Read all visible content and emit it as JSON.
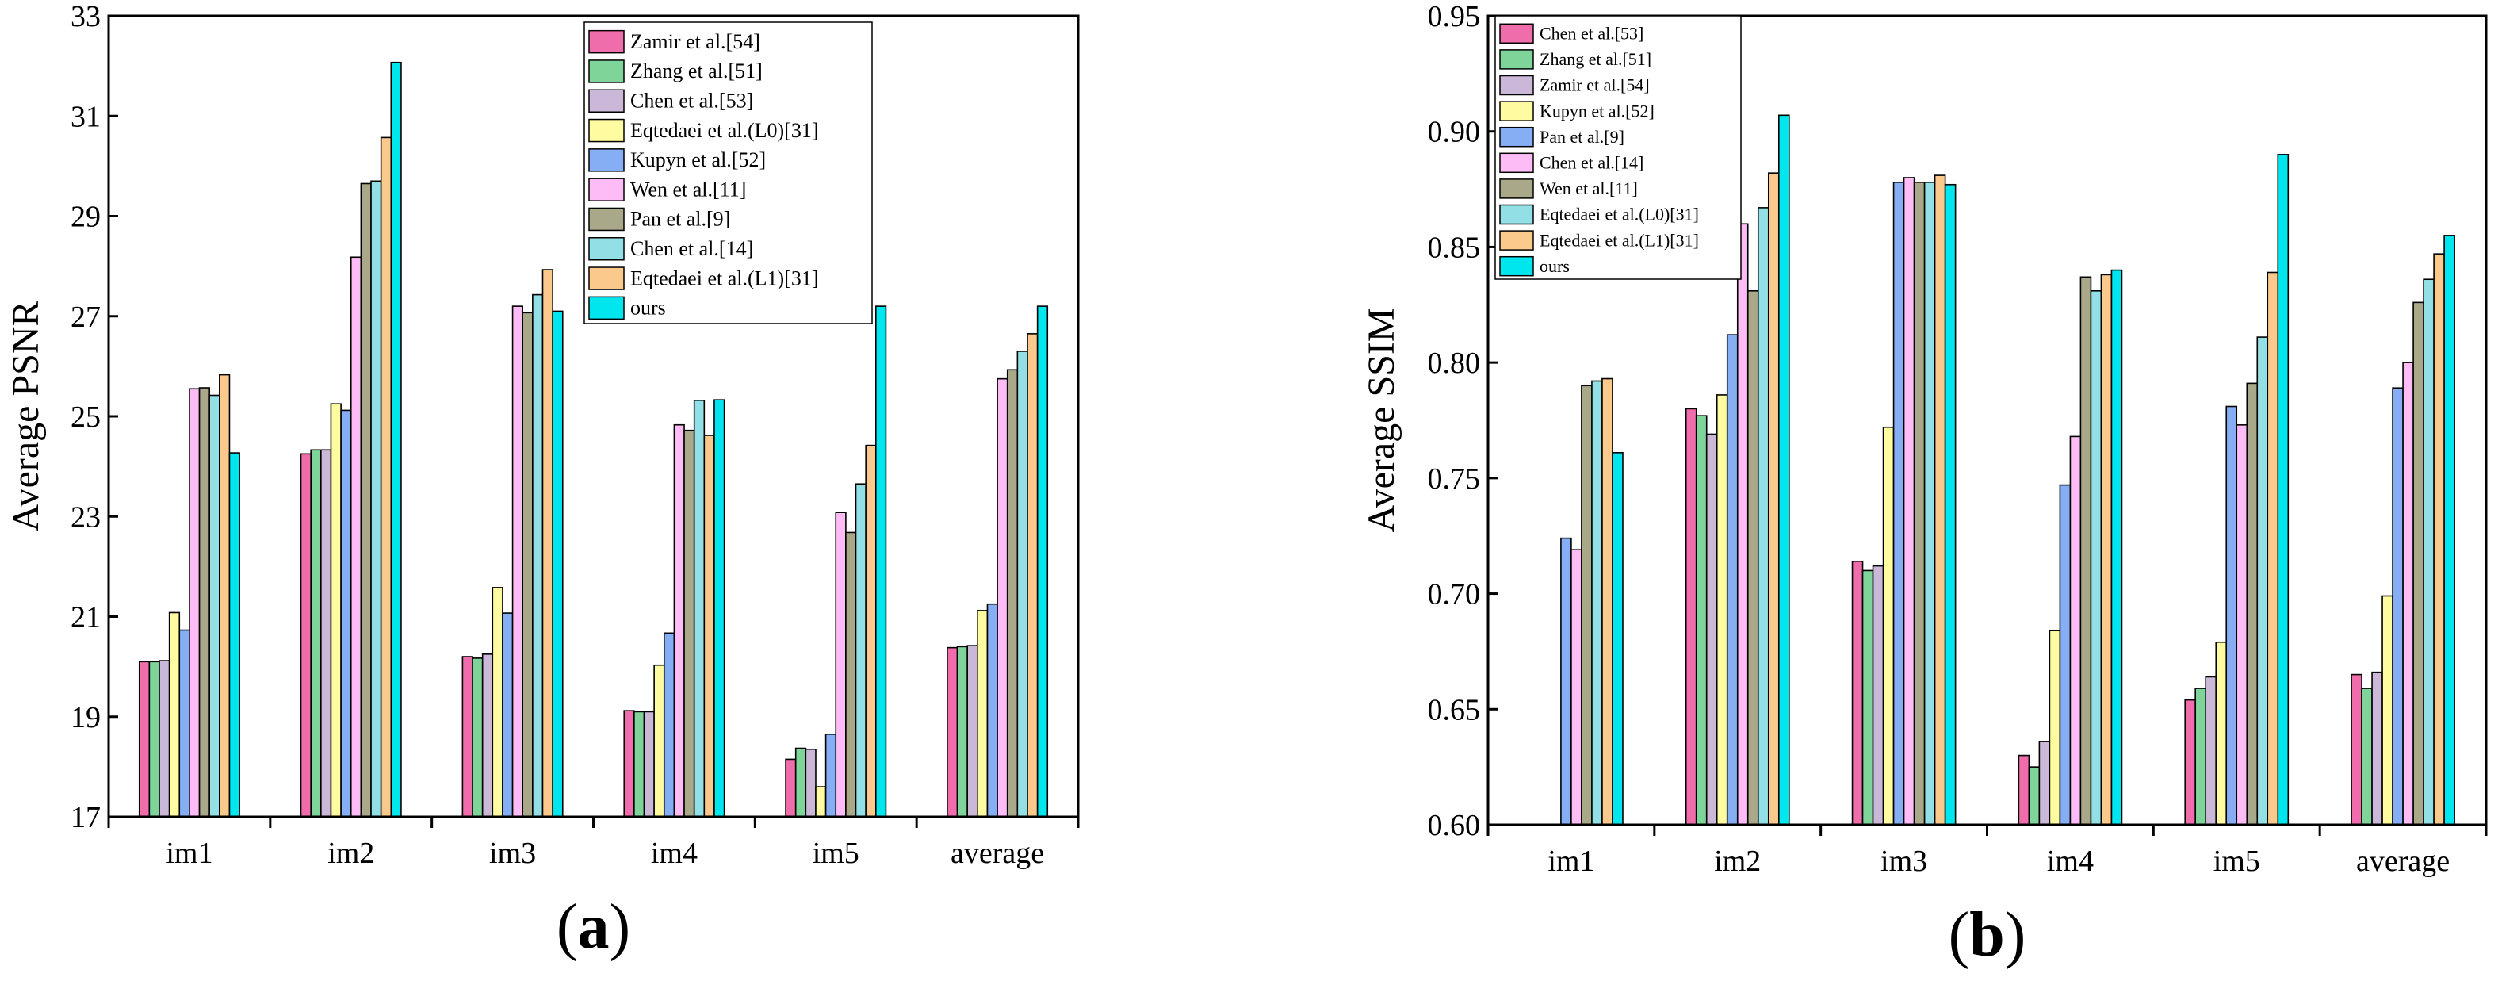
{
  "chart_data": [
    {
      "type": "bar",
      "panel_label": {
        "open": "(",
        "letter": "a",
        "close": ")"
      },
      "ylabel": "Average PSNR",
      "xlabel": "",
      "ylim": [
        17,
        33
      ],
      "yticks": [
        "17",
        "19",
        "21",
        "23",
        "25",
        "27",
        "29",
        "31",
        "33"
      ],
      "categories": [
        "im1",
        "im2",
        "im3",
        "im4",
        "im5",
        "average"
      ],
      "legend_position": "top-right",
      "series": [
        {
          "name": "Zamir et al.[54]",
          "color": "#f06dac",
          "values": [
            20.1,
            24.25,
            20.2,
            19.12,
            18.15,
            20.38
          ]
        },
        {
          "name": "Zhang et al.[51]",
          "color": "#7fd49a",
          "values": [
            20.1,
            24.33,
            20.17,
            19.1,
            18.37,
            20.4
          ]
        },
        {
          "name": "Chen et al.[53]",
          "color": "#cbb8d8",
          "values": [
            20.12,
            24.33,
            20.25,
            19.1,
            18.35,
            20.42
          ]
        },
        {
          "name": "Eqtedaei et al.(L0)[31]",
          "color": "#fffba0",
          "values": [
            21.08,
            25.25,
            21.58,
            20.03,
            17.6,
            21.12
          ]
        },
        {
          "name": "Kupyn et al.[52]",
          "color": "#85aef5",
          "values": [
            20.73,
            25.12,
            21.07,
            20.67,
            18.65,
            21.25
          ]
        },
        {
          "name": "Wen et al.[11]",
          "color": "#fdbcf6",
          "values": [
            25.55,
            28.18,
            27.2,
            24.83,
            23.08,
            25.75
          ]
        },
        {
          "name": "Pan et al.[9]",
          "color": "#a9a98a",
          "values": [
            25.57,
            29.65,
            27.07,
            24.72,
            22.68,
            25.93
          ]
        },
        {
          "name": "Chen et al.[14]",
          "color": "#93dfe6",
          "values": [
            25.42,
            29.7,
            27.43,
            25.32,
            23.65,
            26.3
          ]
        },
        {
          "name": "Eqtedaei et al.(L1)[31]",
          "color": "#fcc98c",
          "values": [
            25.83,
            30.57,
            27.93,
            24.62,
            24.42,
            26.65
          ]
        },
        {
          "name": "ours",
          "color": "#00e6ee",
          "values": [
            24.27,
            32.07,
            27.1,
            25.33,
            27.2,
            27.2
          ]
        }
      ]
    },
    {
      "type": "bar",
      "panel_label": {
        "open": "(",
        "letter": "b",
        "close": ")"
      },
      "ylabel": "Average SSIM",
      "xlabel": "",
      "ylim": [
        0.6,
        0.95
      ],
      "yticks": [
        "0.60",
        "0.65",
        "0.70",
        "0.75",
        "0.80",
        "0.85",
        "0.90",
        "0.95"
      ],
      "categories": [
        "im1",
        "im2",
        "im3",
        "im4",
        "im5",
        "average"
      ],
      "legend_position": "top-left",
      "series": [
        {
          "name": "Chen et al.[53]",
          "color": "#f06dac",
          "values": [
            null,
            0.78,
            0.714,
            0.63,
            0.654,
            0.665
          ]
        },
        {
          "name": "Zhang et al.[51]",
          "color": "#7fd49a",
          "values": [
            null,
            0.777,
            0.71,
            0.625,
            0.659,
            0.659
          ]
        },
        {
          "name": "Zamir et al.[54]",
          "color": "#cbb8d8",
          "values": [
            null,
            0.769,
            0.712,
            0.636,
            0.664,
            0.666
          ]
        },
        {
          "name": "Kupyn et al.[52]",
          "color": "#fffba0",
          "values": [
            null,
            0.786,
            0.772,
            0.684,
            0.679,
            0.699
          ]
        },
        {
          "name": "Pan et al.[9]",
          "color": "#85aef5",
          "values": [
            0.724,
            0.812,
            0.878,
            0.747,
            0.781,
            0.789
          ]
        },
        {
          "name": "Chen et al.[14]",
          "color": "#fdbcf6",
          "values": [
            0.719,
            0.86,
            0.88,
            0.768,
            0.773,
            0.8
          ]
        },
        {
          "name": "Wen et al.[11]",
          "color": "#a9a98a",
          "values": [
            0.79,
            0.831,
            0.878,
            0.837,
            0.791,
            0.826
          ]
        },
        {
          "name": "Eqtedaei et al.(L0)[31]",
          "color": "#93dfe6",
          "values": [
            0.792,
            0.867,
            0.878,
            0.831,
            0.811,
            0.836
          ]
        },
        {
          "name": "Eqtedaei et al.(L1)[31]",
          "color": "#fcc98c",
          "values": [
            0.793,
            0.882,
            0.881,
            0.838,
            0.839,
            0.847
          ]
        },
        {
          "name": "ours",
          "color": "#00e6ee",
          "values": [
            0.761,
            0.907,
            0.877,
            0.84,
            0.89,
            0.855
          ]
        }
      ]
    }
  ]
}
